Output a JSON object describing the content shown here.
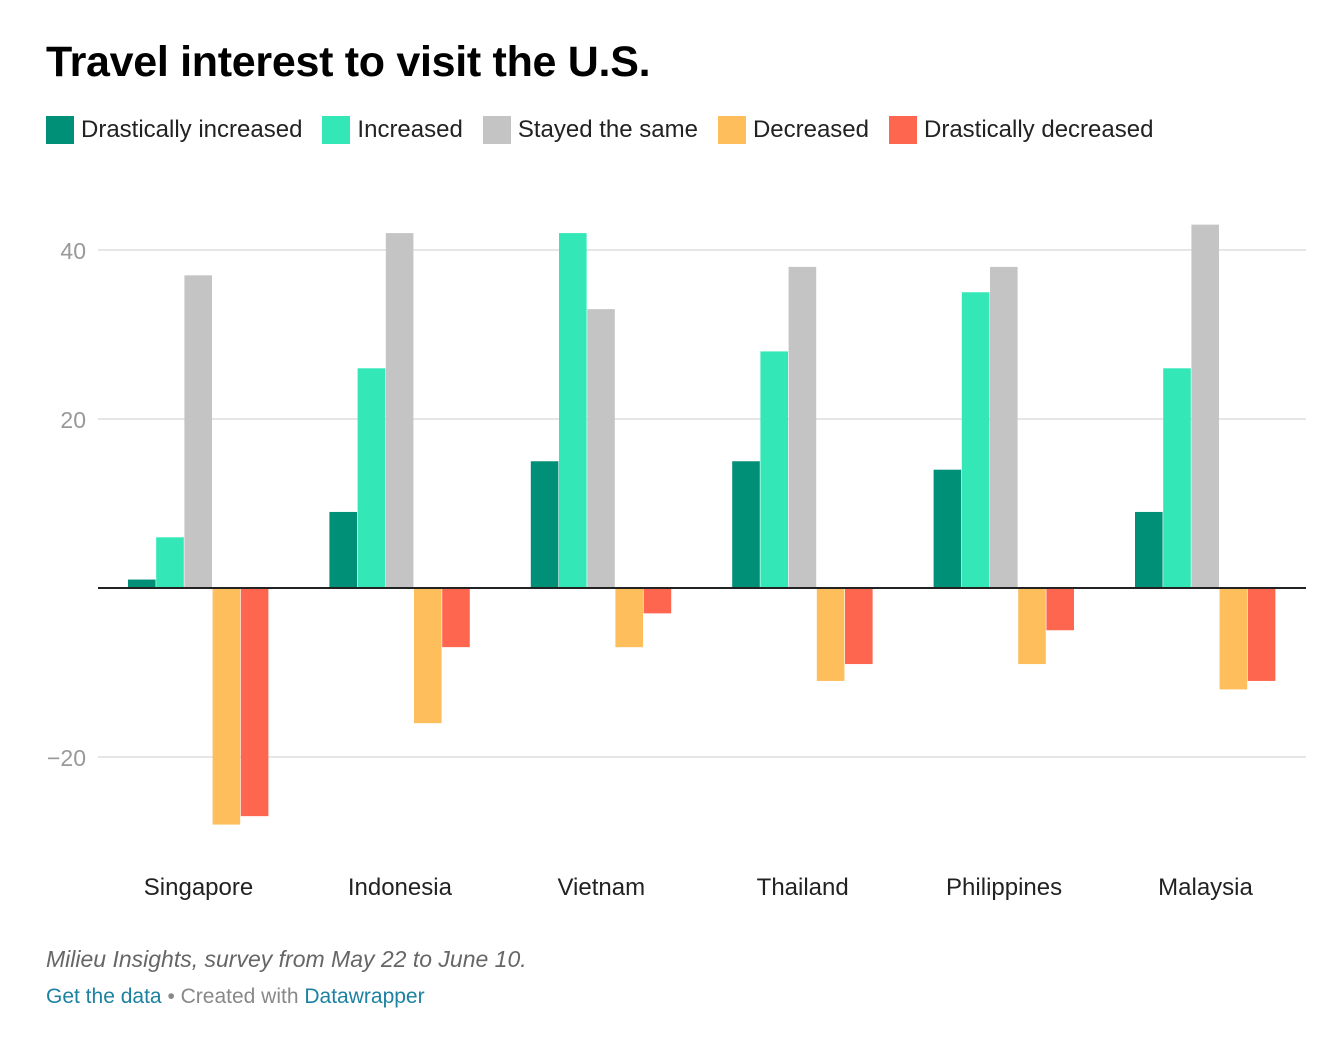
{
  "title": "Travel interest to visit the U.S.",
  "notes": "Milieu Insights, survey from May 22 to June 10.",
  "footer": {
    "get_data_label": "Get the data",
    "separator": "•",
    "created_with_label": "Created with",
    "datawrapper_label": "Datawrapper"
  },
  "chart_data": {
    "type": "bar",
    "title": "Travel interest to visit the U.S.",
    "xlabel": "",
    "ylabel": "",
    "ylim": [
      -30,
      45
    ],
    "yticks": [
      -20,
      20,
      40
    ],
    "grid": true,
    "legend_position": "top",
    "categories": [
      "Singapore",
      "Indonesia",
      "Vietnam",
      "Thailand",
      "Philippines",
      "Malaysia"
    ],
    "series": [
      {
        "name": "Drastically increased",
        "color": "#008f77",
        "values": [
          1,
          9,
          15,
          15,
          14,
          9
        ]
      },
      {
        "name": "Increased",
        "color": "#33e8b6",
        "values": [
          6,
          26,
          42,
          28,
          35,
          26
        ]
      },
      {
        "name": "Stayed the same",
        "color": "#c4c4c4",
        "values": [
          37,
          42,
          33,
          38,
          38,
          43
        ]
      },
      {
        "name": "Decreased",
        "color": "#ffbe5c",
        "values": [
          -28,
          -16,
          -7,
          -11,
          -9,
          -12
        ]
      },
      {
        "name": "Drastically decreased",
        "color": "#ff6650",
        "values": [
          -27,
          -7,
          -3,
          -9,
          -5,
          -11
        ]
      }
    ]
  }
}
